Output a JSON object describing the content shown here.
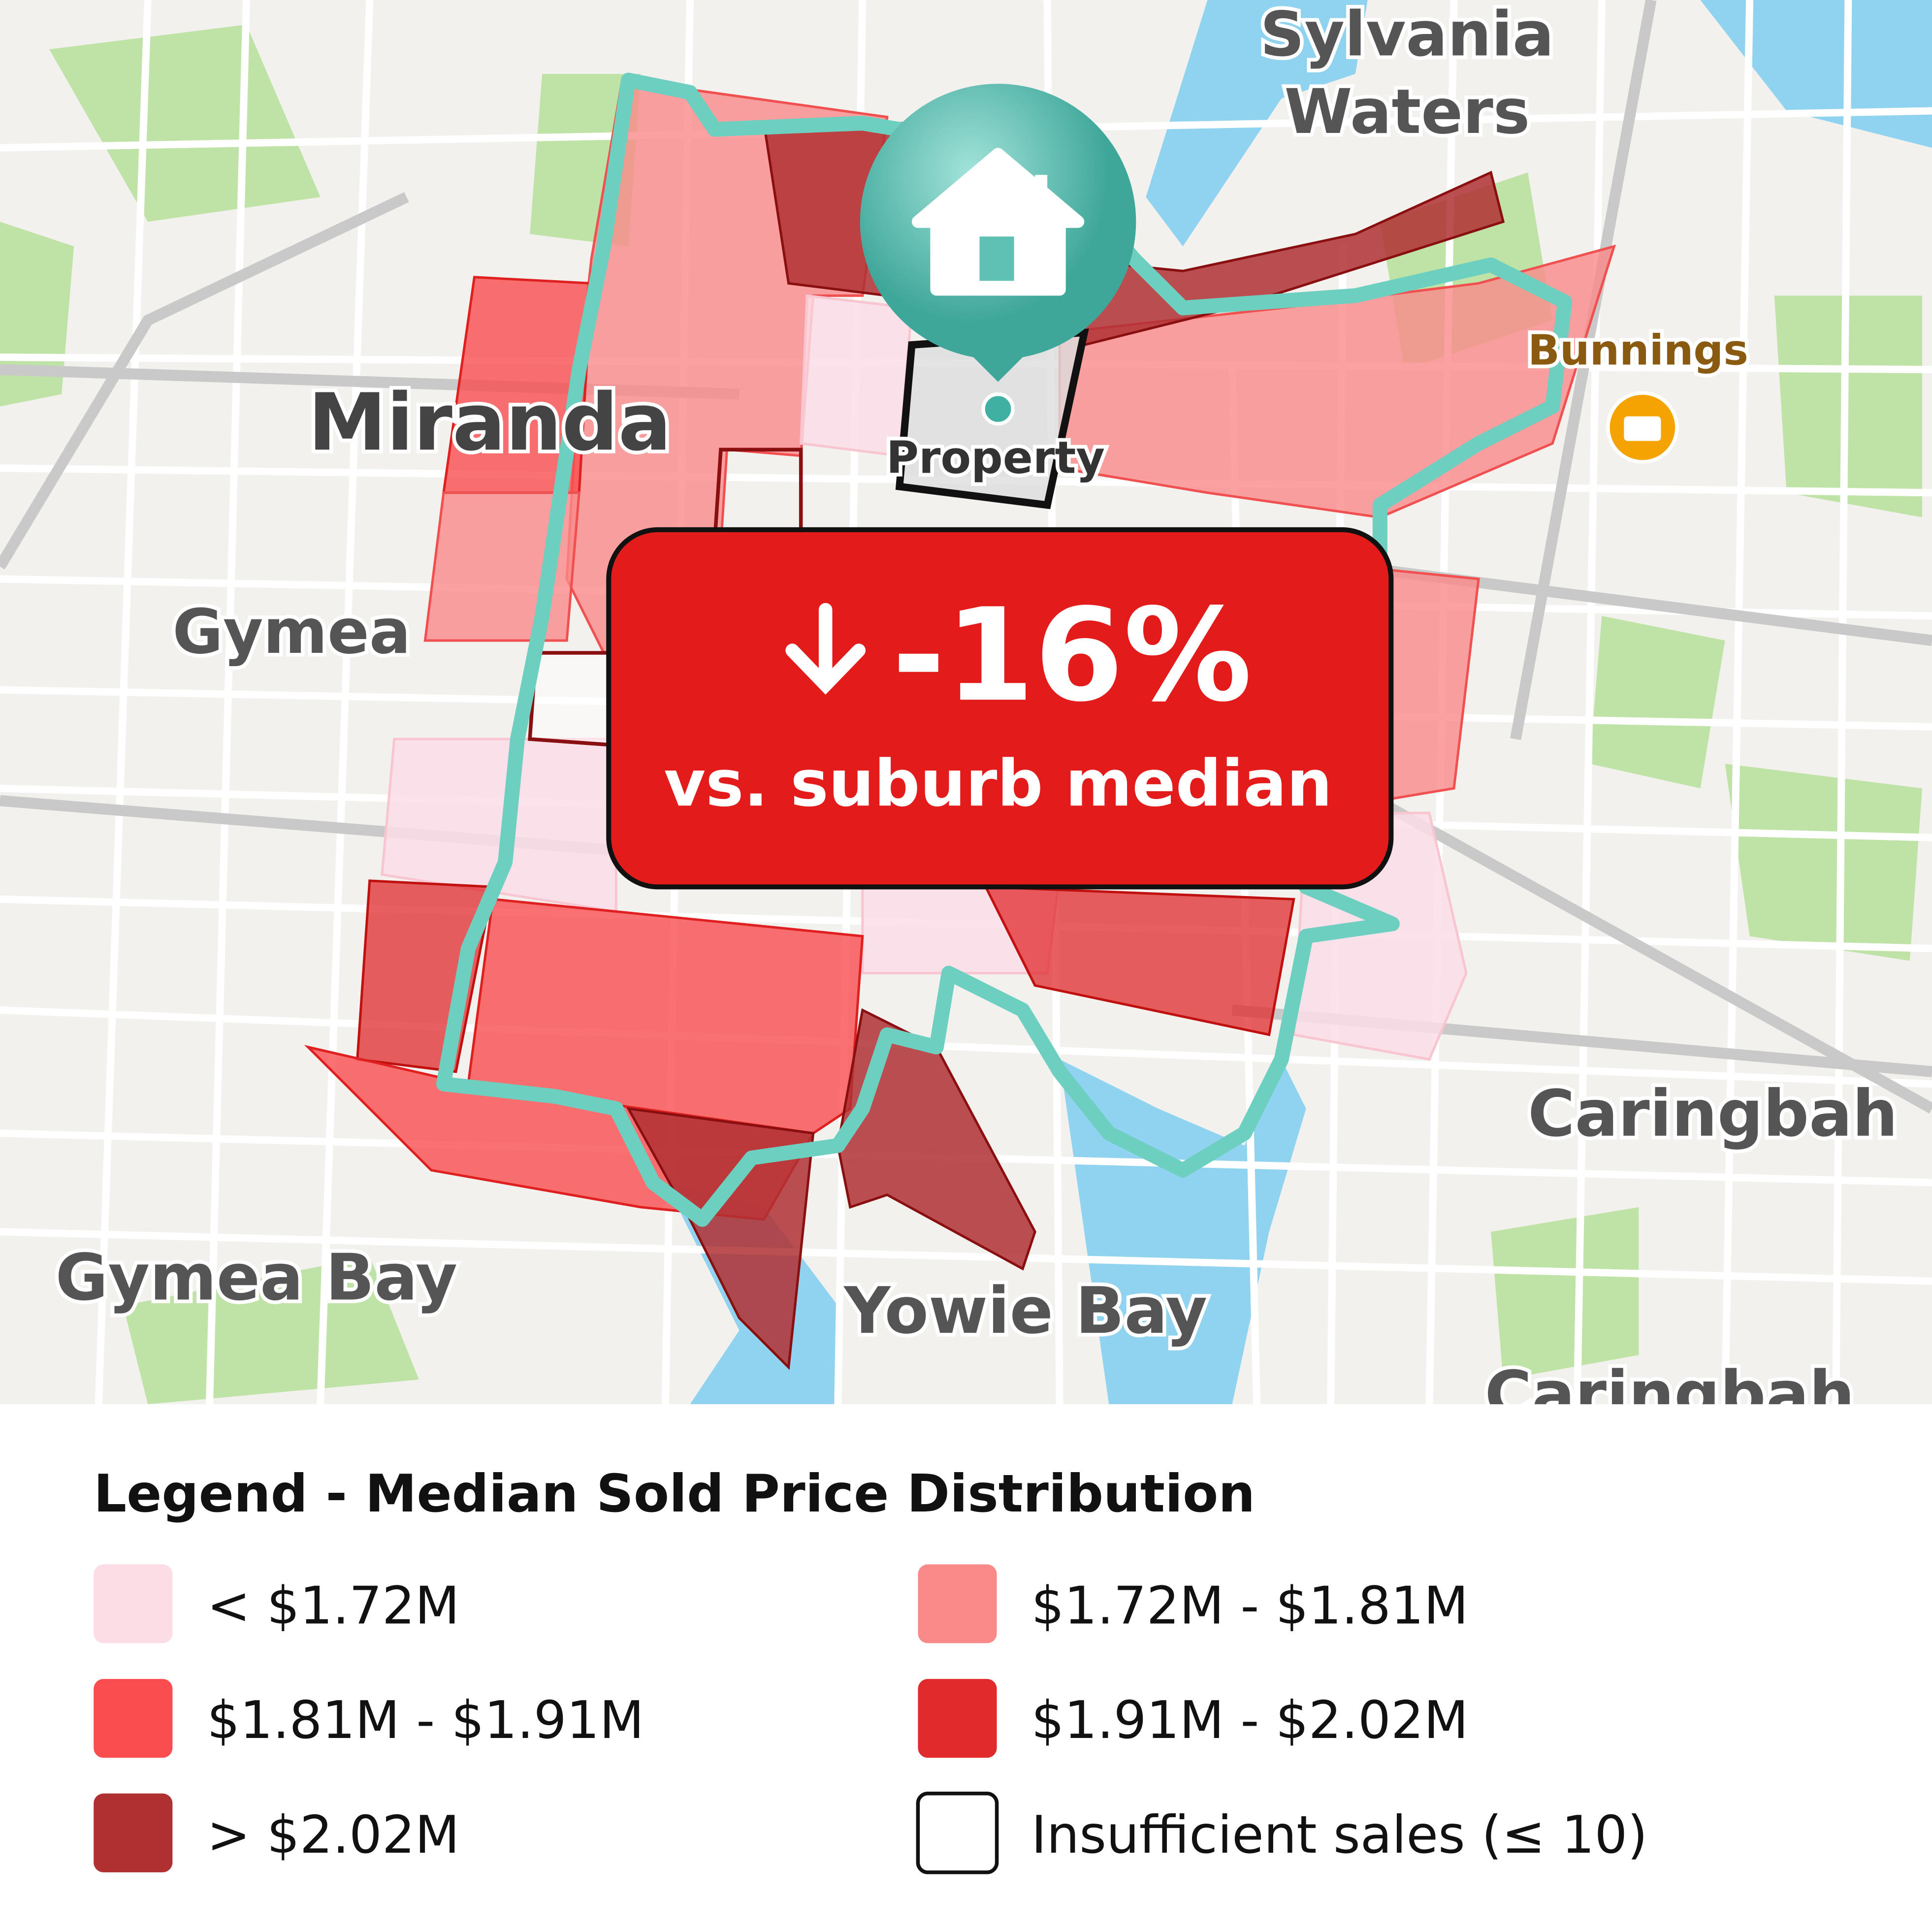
{
  "map": {
    "labels": {
      "sylvania": "Sylvania",
      "waters": "Waters",
      "miranda": "Miranda",
      "gymea": "Gymea",
      "bunnings": "Bunnings",
      "property": "Property",
      "caringbah": "Caringbah",
      "gymea_bay": "Gymea Bay",
      "yowie_bay": "Yowie Bay",
      "caringbah_south": "Caringbah"
    }
  },
  "badge": {
    "change": "-16%",
    "caption": "vs. suburb median"
  },
  "legend": {
    "title": "Legend - Median Sold Price Distribution",
    "items": [
      {
        "label": "< $1.72M",
        "color": "#fcdde6"
      },
      {
        "label": "$1.72M - $1.81M",
        "color": "#fa8a8a"
      },
      {
        "label": "$1.81M - $1.91M",
        "color": "#f94d4f"
      },
      {
        "label": "$1.91M - $2.02M",
        "color": "#e02a2c"
      },
      {
        "label": "> $2.02M",
        "color": "#b03032"
      },
      {
        "label": "Insufficient sales (≤ 10)",
        "color": "#ffffff"
      }
    ]
  }
}
